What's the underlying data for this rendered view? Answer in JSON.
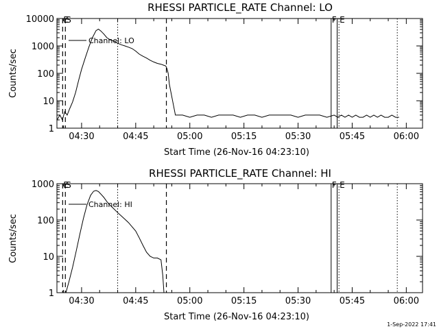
{
  "footer": "1-Sep-2022 17:41",
  "chart_data": [
    {
      "type": "line",
      "title": "RHESSI PARTICLE_RATE Channel: LO",
      "xlabel": "Start Time (26-Nov-16 04:23:10)",
      "ylabel": "Counts/sec",
      "yscale": "log",
      "xlim": [
        "04:23:10",
        "06:04:30"
      ],
      "ylim": [
        1,
        10000
      ],
      "xticks": [
        "04:30",
        "04:45",
        "05:00",
        "05:15",
        "05:30",
        "05:45",
        "06:00"
      ],
      "yticks": [
        "1",
        "10",
        "100",
        "1000",
        "10000"
      ],
      "legend": {
        "label": "Channel: LO",
        "position": "top-left"
      },
      "grid": false,
      "markers": [
        {
          "label": "E",
          "time": "04:24:45",
          "style": "dashed"
        },
        {
          "label": "S",
          "time": "04:25:30",
          "style": "dashed"
        },
        {
          "label": "",
          "time": "04:40:00",
          "style": "dotted"
        },
        {
          "label": "",
          "time": "04:53:30",
          "style": "dashed"
        },
        {
          "label": "F",
          "time": "05:39:10",
          "style": "solid"
        },
        {
          "label": "",
          "time": "05:40:50",
          "style": "solid"
        },
        {
          "label": "E",
          "time": "05:41:20",
          "style": "dotted"
        },
        {
          "label": "",
          "time": "05:57:30",
          "style": "dotted"
        }
      ],
      "series": [
        {
          "name": "Channel: LO",
          "x": [
            "04:23:10",
            "04:24:00",
            "04:24:40",
            "04:25:20",
            "04:26:00",
            "04:26:40",
            "04:27:30",
            "04:28:20",
            "04:29:10",
            "04:30:00",
            "04:31:00",
            "04:32:00",
            "04:33:00",
            "04:34:00",
            "04:34:40",
            "04:35:20",
            "04:36:10",
            "04:37:00",
            "04:38:00",
            "04:39:00",
            "04:40:00",
            "04:41:00",
            "04:42:00",
            "04:43:00",
            "04:44:00",
            "04:45:00",
            "04:46:00",
            "04:47:00",
            "04:48:00",
            "04:49:00",
            "04:50:00",
            "04:51:00",
            "04:52:00",
            "04:52:40",
            "04:53:20",
            "04:53:40",
            "04:54:00",
            "04:54:20",
            "04:56:00",
            "04:58:00",
            "05:00:00",
            "05:02:00",
            "05:04:00",
            "05:06:00",
            "05:08:00",
            "05:10:00",
            "05:12:00",
            "05:14:00",
            "05:16:00",
            "05:18:00",
            "05:20:00",
            "05:22:00",
            "05:24:00",
            "05:26:00",
            "05:28:00",
            "05:30:00",
            "05:32:00",
            "05:34:00",
            "05:36:00",
            "05:38:00",
            "05:40:00",
            "05:41:00",
            "05:42:00",
            "05:43:00",
            "05:44:00",
            "05:45:00",
            "05:46:00",
            "05:47:00",
            "05:48:00",
            "05:49:00",
            "05:50:00",
            "05:51:00",
            "05:52:00",
            "05:53:00",
            "05:54:00",
            "05:55:00",
            "05:56:00",
            "05:57:00",
            "05:58:00"
          ],
          "y": [
            2,
            3,
            2,
            4,
            3,
            5,
            9,
            20,
            55,
            140,
            360,
            900,
            2000,
            3600,
            4100,
            3500,
            2700,
            2000,
            1650,
            1500,
            1250,
            1100,
            1000,
            900,
            800,
            650,
            500,
            420,
            360,
            300,
            260,
            230,
            215,
            200,
            185,
            150,
            100,
            40,
            3,
            3,
            2.5,
            3,
            3,
            2.5,
            3,
            3,
            3,
            2.5,
            3,
            3,
            2.5,
            3,
            3,
            3,
            3,
            2.5,
            3,
            3,
            3,
            2.5,
            3,
            2.5,
            3,
            2.5,
            3,
            2.5,
            3,
            2.5,
            2.5,
            3,
            2.5,
            3,
            2.5,
            3,
            2.5,
            2.5,
            3,
            2.5,
            2.5
          ]
        }
      ]
    },
    {
      "type": "line",
      "title": "RHESSI PARTICLE_RATE Channel: HI",
      "xlabel": "Start Time (26-Nov-16 04:23:10)",
      "ylabel": "Counts/sec",
      "yscale": "log",
      "xlim": [
        "04:23:10",
        "06:04:30"
      ],
      "ylim": [
        1,
        1000
      ],
      "xticks": [
        "04:30",
        "04:45",
        "05:00",
        "05:15",
        "05:30",
        "05:45",
        "06:00"
      ],
      "yticks": [
        "1",
        "10",
        "100",
        "1000"
      ],
      "legend": {
        "label": "Channel: HI",
        "position": "top-left"
      },
      "grid": false,
      "markers": [
        {
          "label": "E",
          "time": "04:24:45",
          "style": "dashed"
        },
        {
          "label": "S",
          "time": "04:25:30",
          "style": "dashed"
        },
        {
          "label": "",
          "time": "04:40:00",
          "style": "dotted"
        },
        {
          "label": "",
          "time": "04:53:30",
          "style": "dashed"
        },
        {
          "label": "F",
          "time": "05:39:10",
          "style": "solid"
        },
        {
          "label": "",
          "time": "05:40:50",
          "style": "solid"
        },
        {
          "label": "E",
          "time": "05:41:20",
          "style": "dotted"
        },
        {
          "label": "",
          "time": "05:57:30",
          "style": "dotted"
        }
      ],
      "series": [
        {
          "name": "Channel: HI",
          "x": [
            "04:25:40",
            "04:26:30",
            "04:27:30",
            "04:28:30",
            "04:29:30",
            "04:30:30",
            "04:31:30",
            "04:32:30",
            "04:33:20",
            "04:34:00",
            "04:34:40",
            "04:35:20",
            "04:36:10",
            "04:37:00",
            "04:38:00",
            "04:39:00",
            "04:40:00",
            "04:41:00",
            "04:42:00",
            "04:43:00",
            "04:44:00",
            "04:45:00",
            "04:46:00",
            "04:47:00",
            "04:48:00",
            "04:49:00",
            "04:50:00",
            "04:51:00",
            "04:52:00",
            "04:52:30",
            "04:52:50"
          ],
          "y": [
            1,
            2,
            5,
            14,
            40,
            110,
            260,
            480,
            620,
            650,
            610,
            520,
            420,
            320,
            250,
            200,
            160,
            130,
            105,
            85,
            65,
            50,
            32,
            20,
            13,
            10,
            9,
            9,
            8,
            3,
            1
          ]
        }
      ]
    }
  ]
}
